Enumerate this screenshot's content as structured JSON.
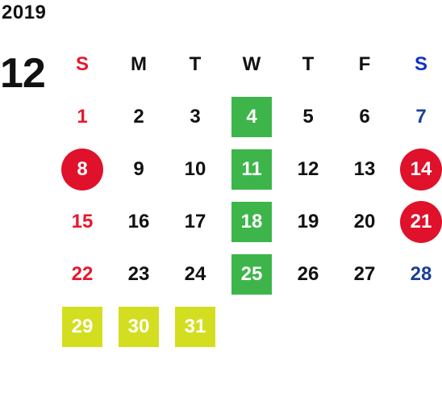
{
  "year": "2019",
  "month": "12",
  "weekdays": [
    "S",
    "M",
    "T",
    "W",
    "T",
    "F",
    "S"
  ],
  "colors": {
    "sunday": "#e8172c",
    "saturday": "#1b3f94",
    "holiday_circle": "#e0112a",
    "wednesday_highlight": "#3db54a",
    "year_end_highlight": "#d4de20"
  },
  "weeks": [
    [
      "1",
      "2",
      "3",
      "4",
      "5",
      "6",
      "7"
    ],
    [
      "8",
      "9",
      "10",
      "11",
      "12",
      "13",
      "14"
    ],
    [
      "15",
      "16",
      "17",
      "18",
      "19",
      "20",
      "21"
    ],
    [
      "22",
      "23",
      "24",
      "25",
      "26",
      "27",
      "28"
    ],
    [
      "29",
      "30",
      "31",
      "",
      "",
      "",
      ""
    ]
  ]
}
